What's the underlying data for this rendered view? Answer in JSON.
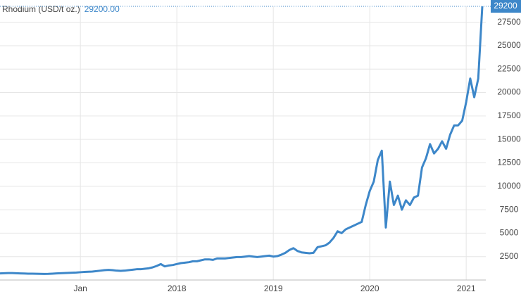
{
  "chart_data": {
    "type": "line",
    "series": [
      {
        "name": "Rhodium (USD/t oz.)",
        "color": "#3d87c9",
        "values": [
          700,
          720,
          740,
          740,
          720,
          700,
          690,
          680,
          680,
          670,
          660,
          650,
          660,
          680,
          700,
          720,
          740,
          760,
          780,
          800,
          830,
          860,
          880,
          900,
          950,
          1000,
          1050,
          1080,
          1050,
          1000,
          980,
          1000,
          1050,
          1100,
          1150,
          1150,
          1200,
          1250,
          1350,
          1500,
          1700,
          1450,
          1550,
          1600,
          1700,
          1800,
          1850,
          1900,
          2000,
          2000,
          2100,
          2200,
          2200,
          2150,
          2300,
          2300,
          2300,
          2350,
          2400,
          2450,
          2450,
          2500,
          2550,
          2500,
          2450,
          2500,
          2550,
          2600,
          2500,
          2550,
          2700,
          2900,
          3200,
          3400,
          3100,
          2950,
          2900,
          2850,
          2900,
          3500,
          3600,
          3700,
          4000,
          4500,
          5200,
          5000,
          5400,
          5600,
          5800,
          6000,
          6200,
          8000,
          9500,
          10500,
          12800,
          13800,
          5600,
          10500,
          8000,
          9000,
          7500,
          8500,
          8000,
          8800,
          9000,
          12000,
          13000,
          14500,
          13500,
          14000,
          14800,
          14000,
          15500,
          16500,
          16500,
          17000,
          19000,
          21500,
          19500,
          21500,
          29200
        ]
      }
    ],
    "legend_value": "29200.00",
    "categories": [
      null,
      null,
      null,
      null,
      null,
      null,
      null,
      null,
      null,
      null,
      null,
      null,
      null,
      null,
      null,
      null,
      null,
      null,
      null,
      null,
      "Jan",
      null,
      null,
      null,
      null,
      null,
      null,
      null,
      null,
      null,
      null,
      null,
      null,
      null,
      null,
      null,
      null,
      null,
      null,
      null,
      null,
      null,
      null,
      null,
      "2018",
      null,
      null,
      null,
      null,
      null,
      null,
      null,
      null,
      null,
      null,
      null,
      null,
      null,
      null,
      null,
      null,
      null,
      null,
      null,
      null,
      null,
      null,
      null,
      "2019",
      null,
      null,
      null,
      null,
      null,
      null,
      null,
      null,
      null,
      null,
      null,
      null,
      null,
      null,
      null,
      null,
      null,
      null,
      null,
      null,
      null,
      null,
      null,
      "2020",
      null,
      null,
      null,
      null,
      null,
      null,
      null,
      null,
      null,
      null,
      null,
      null,
      null,
      null,
      null,
      null,
      null,
      null,
      null,
      null,
      null,
      null,
      null,
      "2021",
      null,
      null,
      null,
      null
    ],
    "ylim": [
      0,
      29200
    ],
    "yticks": [
      2500,
      5000,
      7500,
      10000,
      12500,
      15000,
      17500,
      20000,
      22500,
      25000,
      27500
    ],
    "grid": true
  }
}
